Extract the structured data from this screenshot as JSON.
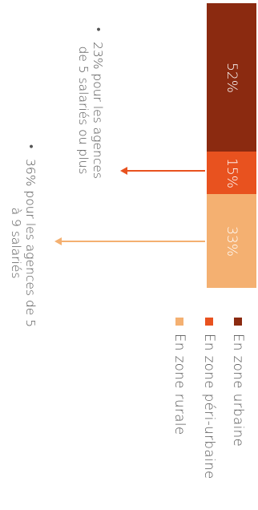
{
  "chart_data": {
    "type": "bar",
    "orientation": "stacked-single",
    "categories": [
      "En zone urbaine",
      "En zone péri-urbaine",
      "En zone rurale"
    ],
    "values": [
      52,
      15,
      33
    ],
    "labels": [
      "52%",
      "15%",
      "33%"
    ],
    "colors": [
      "#8b2a10",
      "#e8521f",
      "#f4b071"
    ],
    "legend": {
      "placement": "bottom",
      "entries": [
        "En zone urbaine",
        "En zone péri-urbaine",
        "En zone rurale"
      ]
    },
    "annotations": [
      {
        "target_segment": "En zone péri-urbaine",
        "lines": [
          "23% pour les agences",
          "de 5 salariés ou plus"
        ]
      },
      {
        "target_segment": "En zone rurale",
        "lines": [
          "36% pour les agences de 5",
          "à 9 salariés"
        ]
      }
    ]
  }
}
